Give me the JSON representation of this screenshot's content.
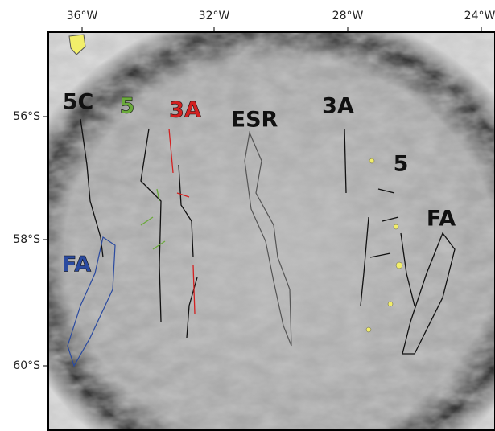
{
  "axes": {
    "top": [
      "36°W",
      "32°W",
      "28°W",
      "24°W"
    ],
    "left": [
      "56°S",
      "58°S",
      "60°S"
    ]
  },
  "labels": [
    {
      "text": "5C"
    },
    {
      "text": "5"
    },
    {
      "text": "3A"
    },
    {
      "text": "ESR"
    },
    {
      "text": "3A"
    },
    {
      "text": "5"
    },
    {
      "text": "FA"
    },
    {
      "text": "FA"
    }
  ]
}
